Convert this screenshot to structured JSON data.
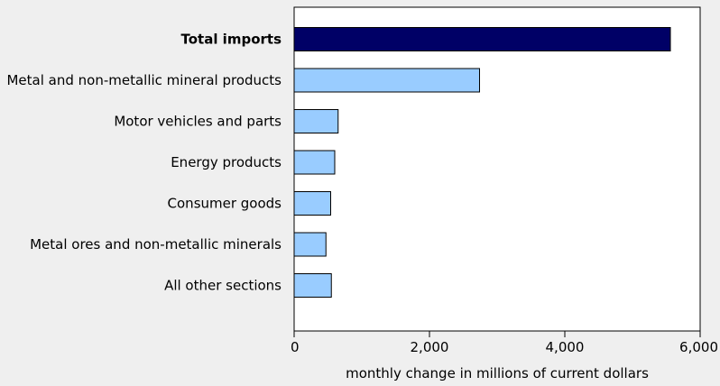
{
  "chart_data": {
    "type": "bar",
    "orientation": "horizontal",
    "title": "",
    "xlabel": "monthly change in millions of current dollars",
    "ylabel": "",
    "xlim": [
      0,
      6000
    ],
    "xticks": [
      0,
      2000,
      4000,
      6000
    ],
    "xtick_labels": [
      "0",
      "2,000",
      "4,000",
      "6,000"
    ],
    "grid": false,
    "categories": [
      "Total imports",
      "Metal and non-metallic mineral products",
      "Motor vehicles and parts",
      "Energy products",
      "Consumer goods",
      "Metal ores and non-metallic minerals",
      "All other sections"
    ],
    "values": [
      5560,
      2740,
      650,
      600,
      540,
      470,
      550
    ],
    "highlight_index": 0,
    "colors": {
      "highlight": "#000066",
      "bar": "#99ccff",
      "bar_edge": "#000000",
      "plot_bg": "#ffffff",
      "page_bg": "#efefef"
    }
  }
}
